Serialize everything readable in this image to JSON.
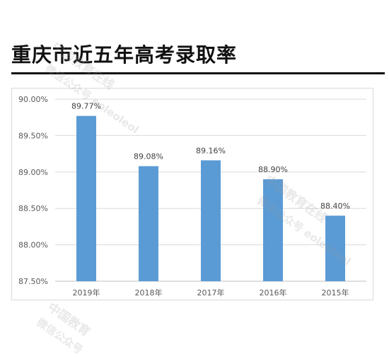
{
  "title": "重庆市近五年高考录取率",
  "chart_data": {
    "type": "bar",
    "categories": [
      "2019年",
      "2018年",
      "2017年",
      "2016年",
      "2015年"
    ],
    "values": [
      89.77,
      89.08,
      89.16,
      88.9,
      88.4
    ],
    "data_labels": [
      "89.77%",
      "89.08%",
      "89.16%",
      "88.90%",
      "88.40%"
    ],
    "y_ticks": [
      "87.50%",
      "88.00%",
      "88.50%",
      "89.00%",
      "89.50%",
      "90.00%"
    ],
    "ylim": [
      87.5,
      90.0
    ],
    "grid": true,
    "bar_color": "#5b9bd5"
  },
  "watermarks": [
    {
      "text": "中国教育在线"
    },
    {
      "text": "微信公众号 eoleoleol"
    },
    {
      "text": "中国教育在线"
    },
    {
      "text": "微信公众号 eoleoleol"
    },
    {
      "text": "中国教育"
    },
    {
      "text": "微信公众号"
    }
  ]
}
